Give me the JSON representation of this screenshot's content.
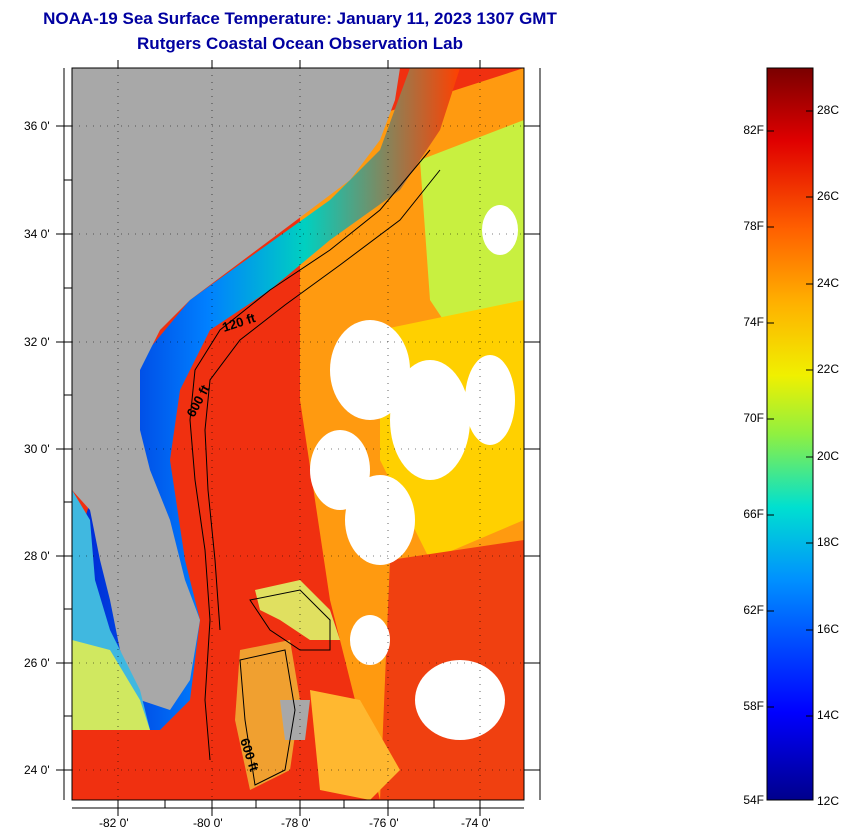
{
  "header": {
    "title": "NOAA-19 Sea Surface Temperature:  January 11, 2023 1307 GMT",
    "subtitle": "Rutgers Coastal Ocean Observation Lab"
  },
  "map": {
    "lat_labels": [
      "36 0'",
      "34 0'",
      "32 0'",
      "30 0'",
      "28 0'",
      "26 0'",
      "24 0'"
    ],
    "lon_labels": [
      "-82 0'",
      "-80 0'",
      "-78 0'",
      "-76 0'",
      "-74 0'"
    ],
    "contour_labels": [
      "120 ft",
      "600 ft",
      "600 ft"
    ]
  },
  "colorbar": {
    "fahrenheit_labels": [
      "82F",
      "78F",
      "74F",
      "70F",
      "66F",
      "62F",
      "58F",
      "54F"
    ],
    "celsius_labels": [
      "28C",
      "26C",
      "24C",
      "22C",
      "20C",
      "18C",
      "16C",
      "14C",
      "12C"
    ]
  }
}
